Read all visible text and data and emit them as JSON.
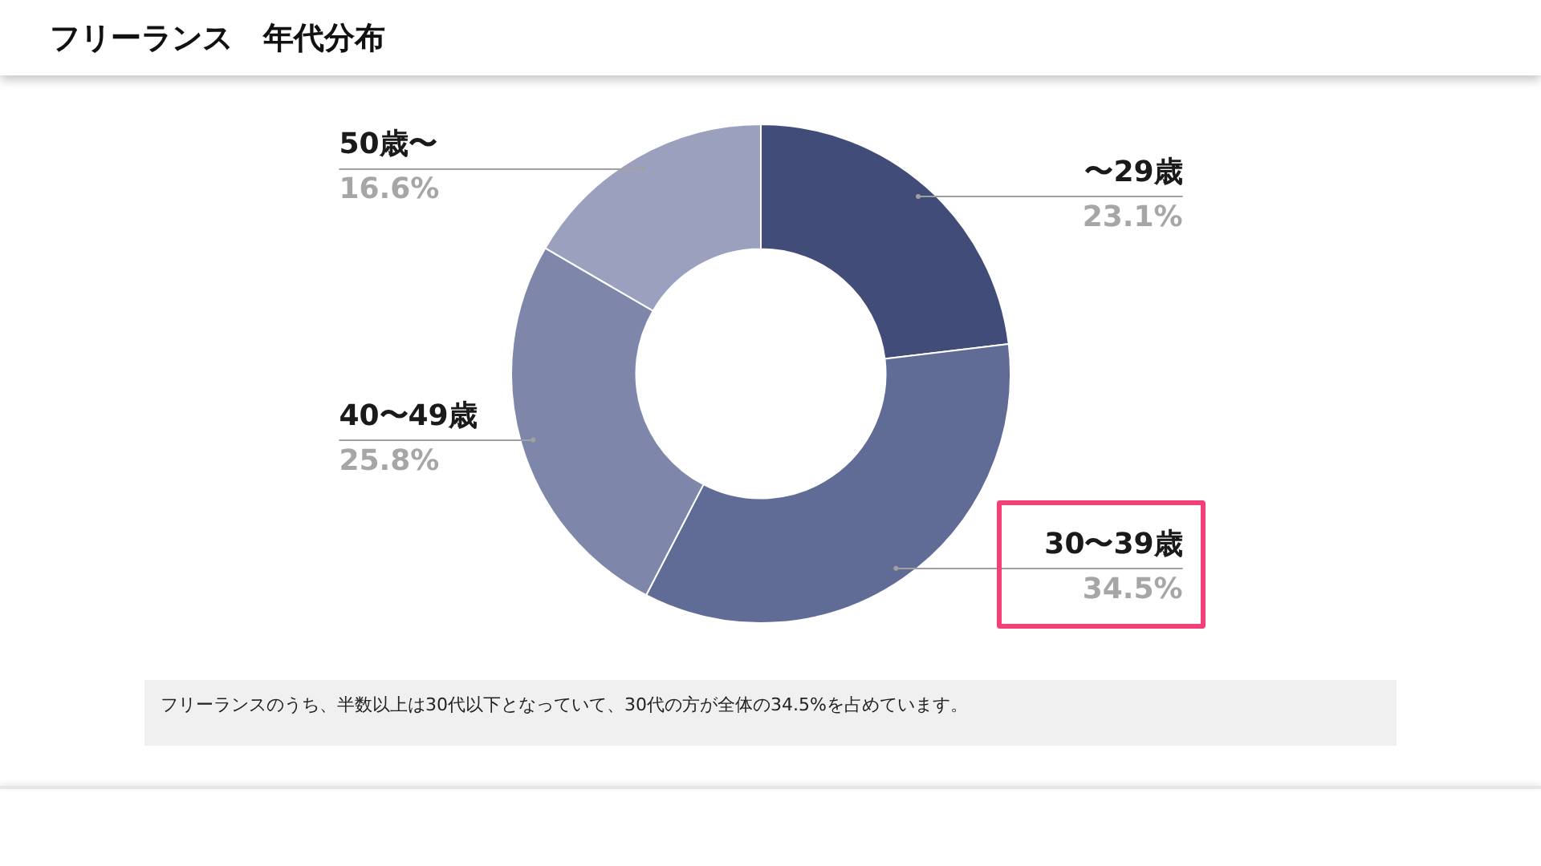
{
  "chart_data": {
    "type": "donut",
    "title": "フリーランス　年代分布",
    "categories": [
      "〜29歳",
      "30〜39歳",
      "40〜49歳",
      "50歳〜"
    ],
    "values": [
      23.1,
      34.5,
      25.8,
      16.6
    ],
    "colors": [
      "#414d78",
      "#606b96",
      "#7e86aa",
      "#9aa0bd"
    ],
    "value_labels": [
      "23.1%",
      "34.5%",
      "25.8%",
      "16.6%"
    ],
    "legend": false,
    "annotations": [
      "フリーランスのうち、半数以上は30代以下となっていて、30代の方が全体の34.5%を占めています。"
    ]
  }
}
